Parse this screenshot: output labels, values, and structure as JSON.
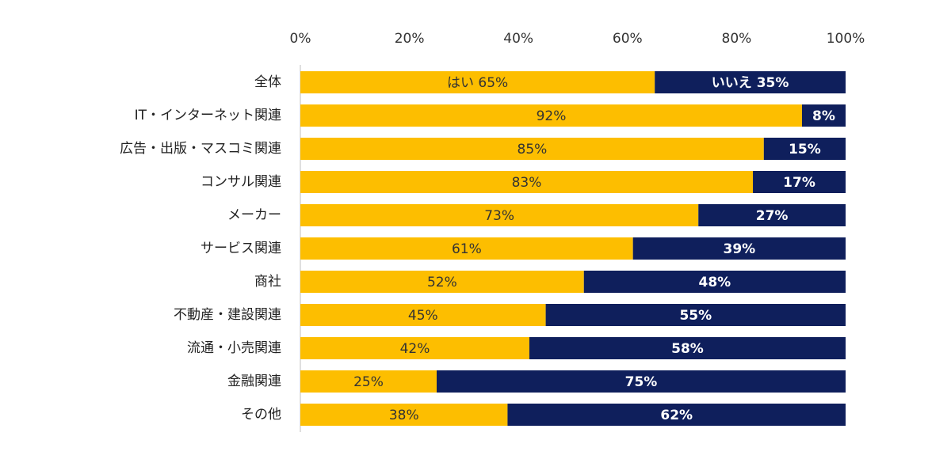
{
  "chart_data": {
    "type": "bar",
    "orientation": "horizontal",
    "stacked": true,
    "percent_stacked": true,
    "x_ticks": [
      "0%",
      "20%",
      "40%",
      "60%",
      "80%",
      "100%"
    ],
    "xlim": [
      0,
      100
    ],
    "axis_position": "top",
    "grid": false,
    "categories": [
      "全体",
      "IT・インターネット関連",
      "広告・出版・マスコミ関連",
      "コンサル関連",
      "メーカー",
      "サービス関連",
      "商社",
      "不動産・建設関連",
      "流通・小売関連",
      "金融関連",
      "その他"
    ],
    "series": [
      {
        "name": "はい",
        "color": "#FDBE00",
        "values": [
          65,
          92,
          85,
          83,
          73,
          61,
          52,
          45,
          42,
          25,
          38
        ],
        "labels": [
          "はい 65%",
          "92%",
          "85%",
          "83%",
          "73%",
          "61%",
          "52%",
          "45%",
          "42%",
          "25%",
          "38%"
        ]
      },
      {
        "name": "いいえ",
        "color": "#0F1F5C",
        "values": [
          35,
          8,
          15,
          17,
          27,
          39,
          48,
          55,
          58,
          75,
          62
        ],
        "labels": [
          "いいえ 35%",
          "8%",
          "15%",
          "17%",
          "27%",
          "39%",
          "48%",
          "55%",
          "58%",
          "75%",
          "62%"
        ]
      }
    ]
  }
}
